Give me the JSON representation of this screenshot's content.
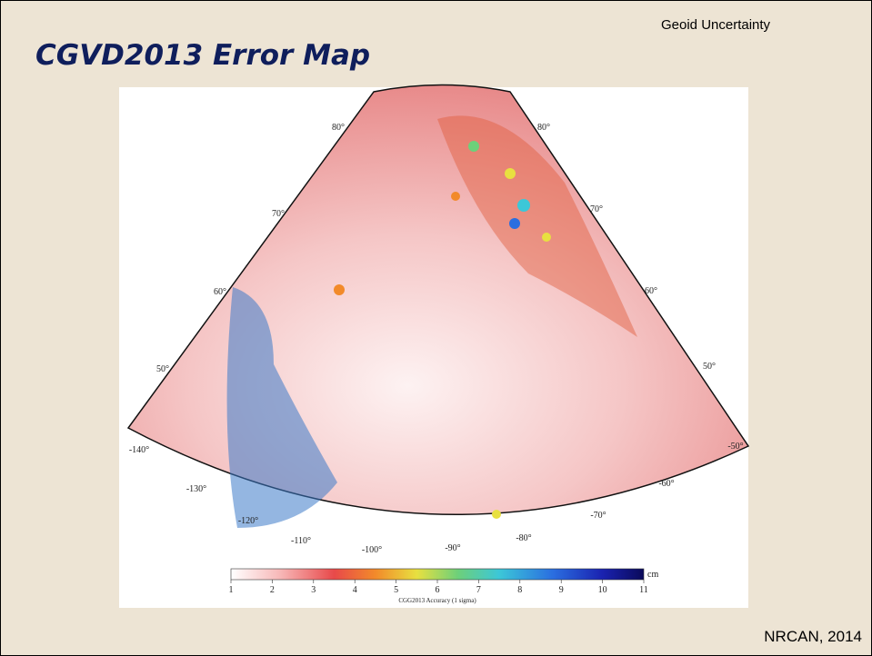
{
  "header": {
    "topic": "Geoid Uncertainty",
    "title": "CGVD2013 Error Map"
  },
  "map": {
    "latitude_labels": {
      "left": [
        "80°",
        "70°",
        "60°",
        "50°"
      ],
      "right": [
        "80°",
        "70°",
        "60°",
        "50°"
      ]
    },
    "longitude_labels": [
      "-140°",
      "-130°",
      "-120°",
      "-110°",
      "-100°",
      "-90°",
      "-80°",
      "-70°",
      "-60°",
      "-50°"
    ],
    "colorbar": {
      "range": [
        1,
        11
      ],
      "ticks": [
        1,
        2,
        3,
        4,
        5,
        6,
        7,
        8,
        9,
        10,
        11
      ],
      "unit": "cm",
      "caption": "CGG2013 Accuracy (1 sigma)"
    }
  },
  "footer": {
    "source": "NRCAN, 2014"
  }
}
